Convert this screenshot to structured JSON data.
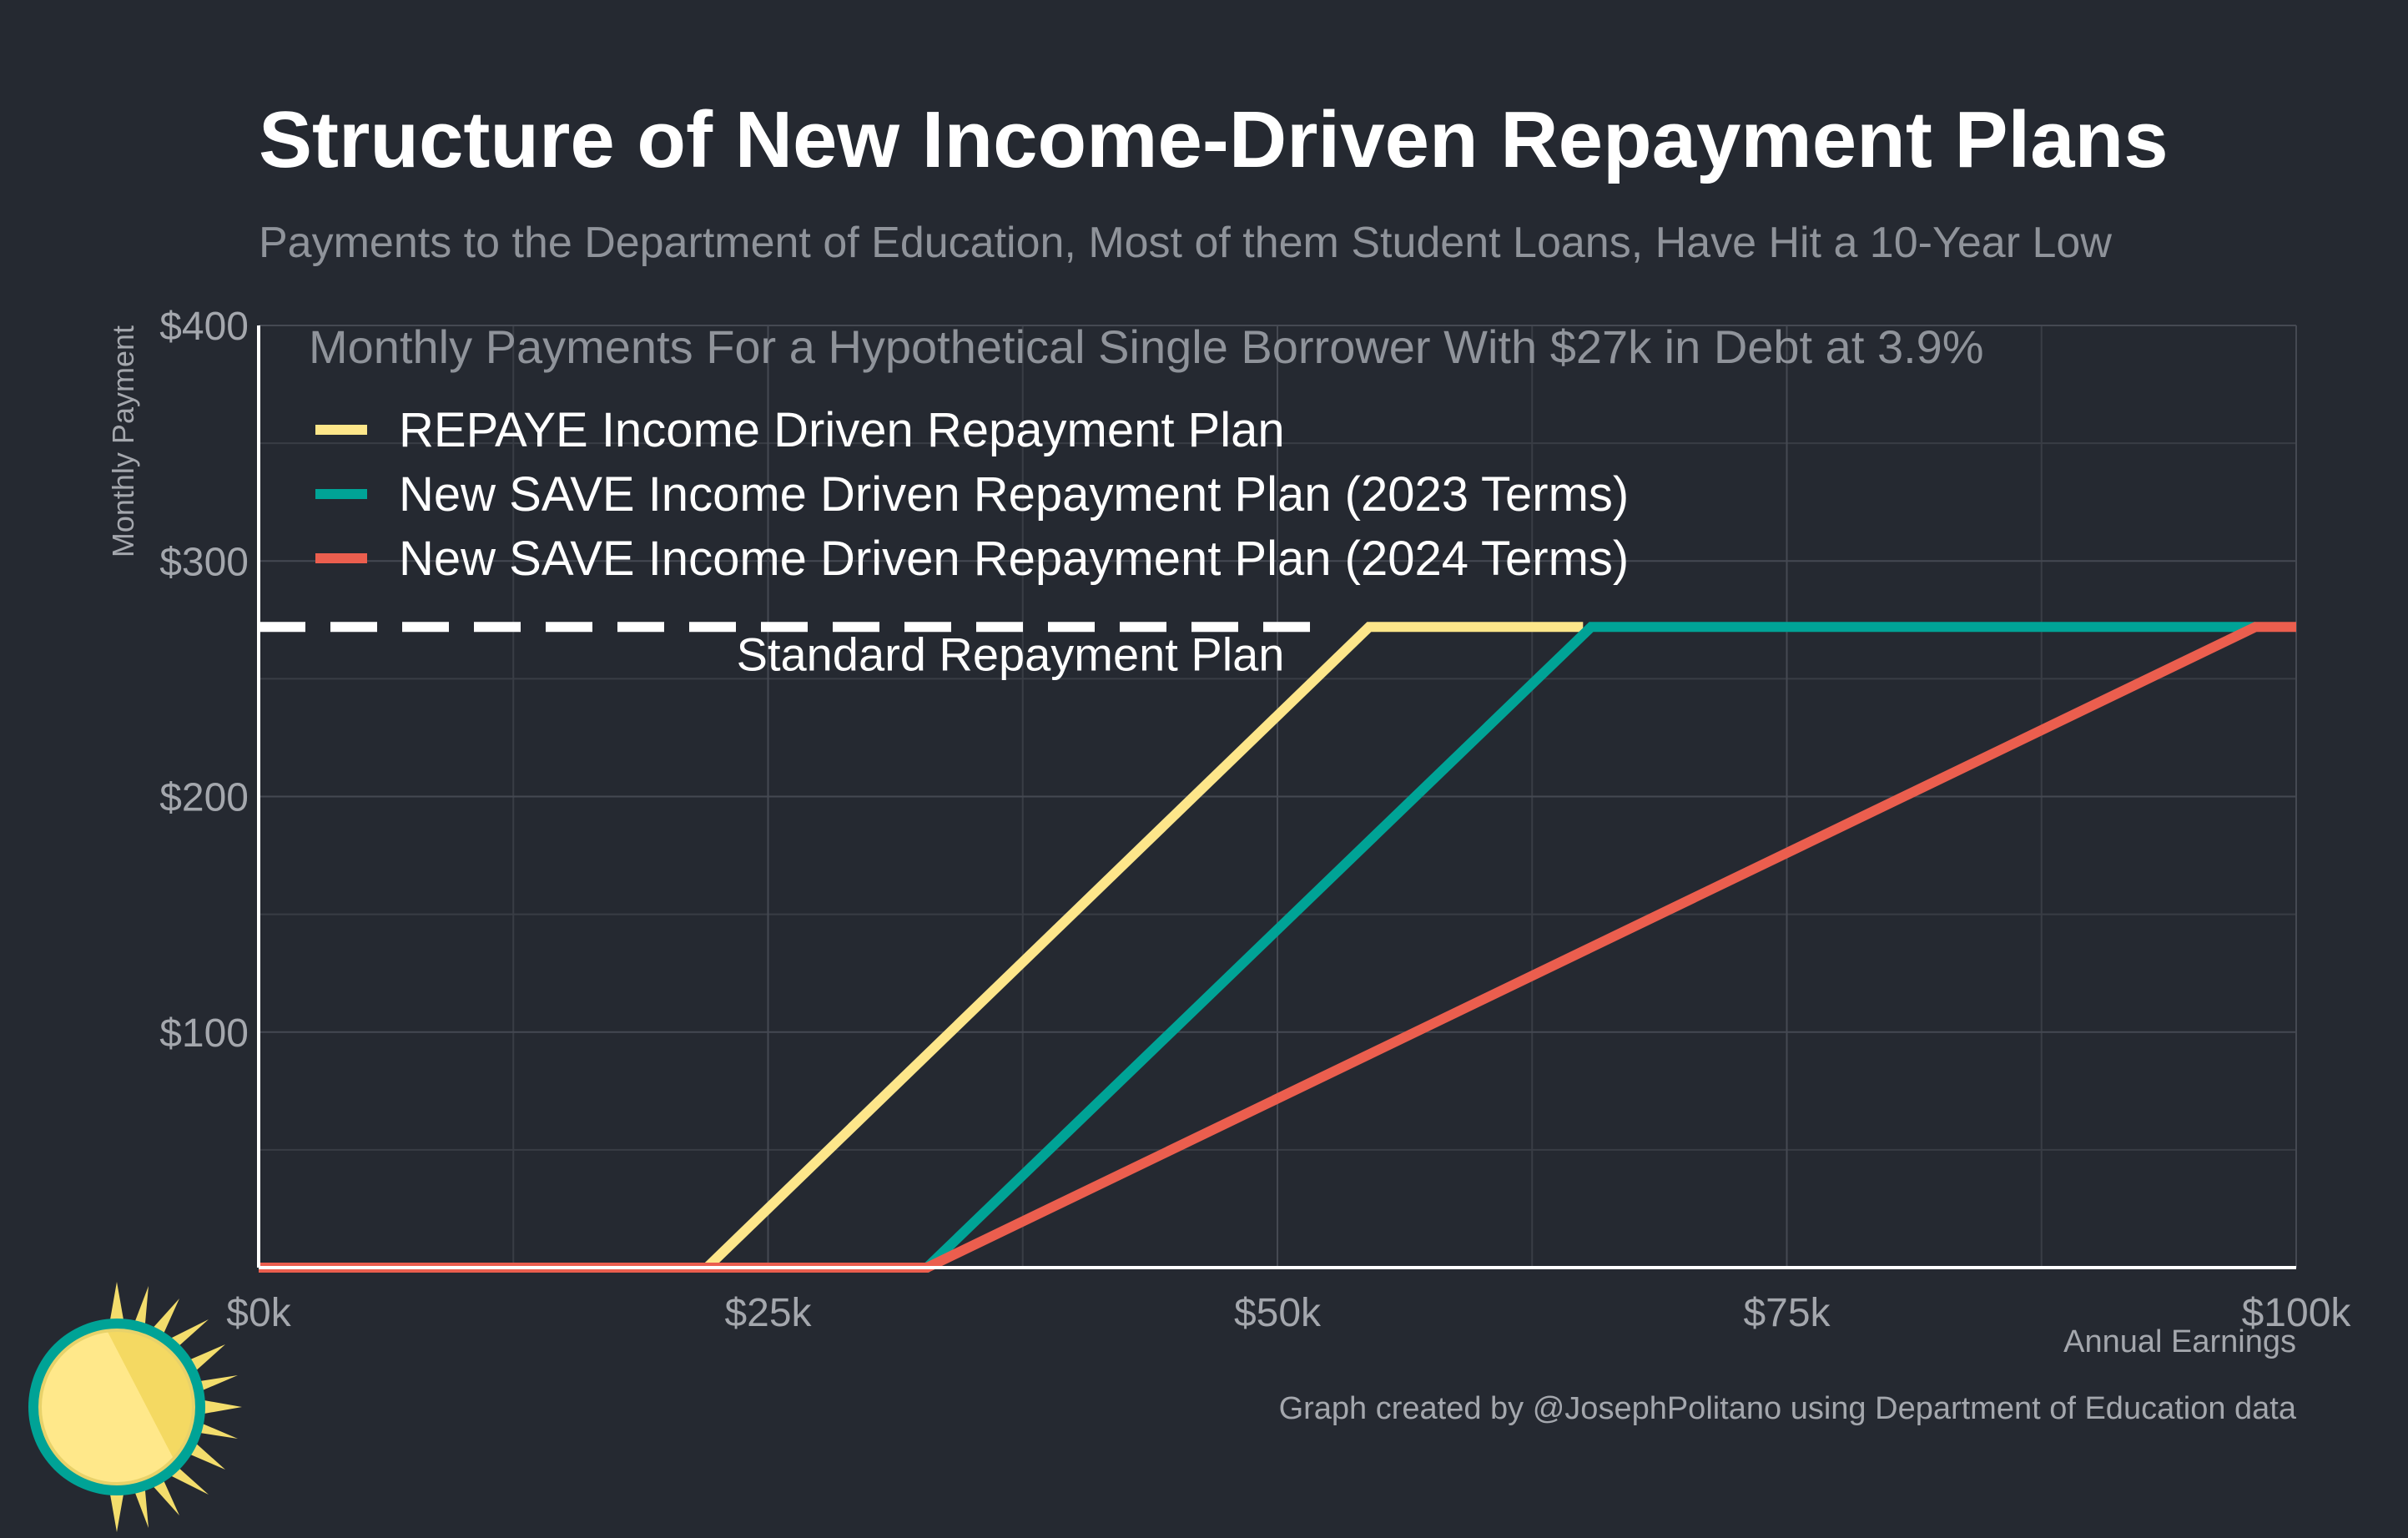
{
  "chart_data": {
    "type": "line",
    "title": "Structure of New Income-Driven Repayment Plans",
    "subtitle": "Payments to the Department of Education, Most of them Student Loans, Have Hit a 10-Year Low",
    "chart_heading": "Monthly Payments For a Hypothetical Single Borrower With $27k in Debt at 3.9%",
    "xlabel": "Annual Earnings",
    "ylabel": "Monthly Payment",
    "xlim": [
      0,
      100000
    ],
    "ylim": [
      0,
      400
    ],
    "x_ticks": [
      {
        "value": 0,
        "label": "$0k"
      },
      {
        "value": 25000,
        "label": "$25k"
      },
      {
        "value": 50000,
        "label": "$50k"
      },
      {
        "value": 75000,
        "label": "$75k"
      },
      {
        "value": 100000,
        "label": "$100k"
      }
    ],
    "y_ticks": [
      {
        "value": 100,
        "label": "$100"
      },
      {
        "value": 200,
        "label": "$200"
      },
      {
        "value": 300,
        "label": "$300"
      },
      {
        "value": 400,
        "label": "$400"
      }
    ],
    "x_minor_grid": [
      12500,
      37500,
      62500,
      87500
    ],
    "y_minor_grid": [
      50,
      150,
      250,
      350
    ],
    "grid": true,
    "legend_position": "top-left",
    "series": [
      {
        "name": "REPAYE Income Driven Repayment Plan",
        "color": "#fde68a",
        "points": [
          [
            0,
            0
          ],
          [
            22000,
            0
          ],
          [
            54500,
            272
          ],
          [
            65000,
            272
          ]
        ]
      },
      {
        "name": "New SAVE Income Driven Repayment Plan (2023 Terms)",
        "color": "#00a396",
        "points": [
          [
            0,
            0
          ],
          [
            32800,
            0
          ],
          [
            65400,
            272
          ],
          [
            98000,
            272
          ]
        ]
      },
      {
        "name": "New SAVE Income Driven Repayment Plan (2024 Terms)",
        "color": "#eb5e4e",
        "points": [
          [
            0,
            0
          ],
          [
            32800,
            0
          ],
          [
            98000,
            272
          ],
          [
            100000,
            272
          ]
        ]
      }
    ],
    "reference_line": {
      "label": "Standard Repayment Plan",
      "value": 272,
      "x_end": 52500,
      "color": "#ffffff"
    },
    "annotations": {
      "credit": "Graph created by @JosephPolitano using Department of Education data"
    }
  },
  "logo": {
    "icon": "sun-logo-icon"
  }
}
